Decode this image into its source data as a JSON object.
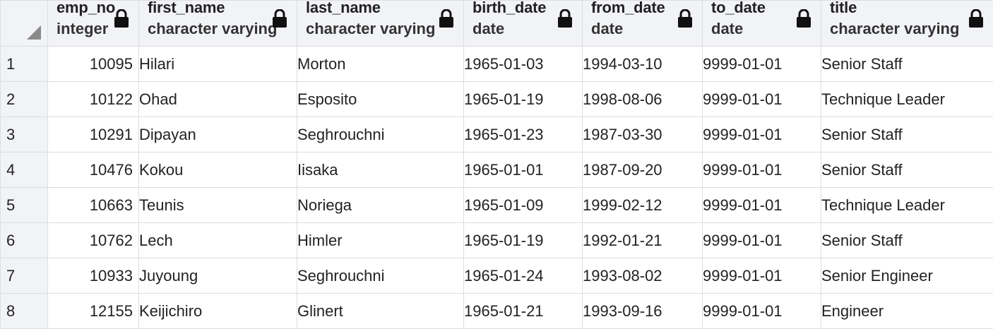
{
  "colors": {
    "header_bg": "#f2f3f6",
    "grid_border": "#dcdde2",
    "text": "#222222"
  },
  "columns": [
    {
      "name": "emp_no",
      "type": "integer",
      "locked": true,
      "icon": "lock-icon"
    },
    {
      "name": "first_name",
      "type": "character varying",
      "locked": true,
      "icon": "lock-icon"
    },
    {
      "name": "last_name",
      "type": "character varying",
      "locked": true,
      "icon": "lock-icon"
    },
    {
      "name": "birth_date",
      "type": "date",
      "locked": true,
      "icon": "lock-icon"
    },
    {
      "name": "from_date",
      "type": "date",
      "locked": true,
      "icon": "lock-icon"
    },
    {
      "name": "to_date",
      "type": "date",
      "locked": true,
      "icon": "lock-icon"
    },
    {
      "name": "title",
      "type": "character varying",
      "locked": true,
      "icon": "lock-icon"
    }
  ],
  "rows": [
    {
      "row": "1",
      "cells": [
        "10095",
        "Hilari",
        "Morton",
        "1965-01-03",
        "1994-03-10",
        "9999-01-01",
        "Senior Staff"
      ]
    },
    {
      "row": "2",
      "cells": [
        "10122",
        "Ohad",
        "Esposito",
        "1965-01-19",
        "1998-08-06",
        "9999-01-01",
        "Technique Leader"
      ]
    },
    {
      "row": "3",
      "cells": [
        "10291",
        "Dipayan",
        "Seghrouchni",
        "1965-01-23",
        "1987-03-30",
        "9999-01-01",
        "Senior Staff"
      ]
    },
    {
      "row": "4",
      "cells": [
        "10476",
        "Kokou",
        "Iisaka",
        "1965-01-01",
        "1987-09-20",
        "9999-01-01",
        "Senior Staff"
      ]
    },
    {
      "row": "5",
      "cells": [
        "10663",
        "Teunis",
        "Noriega",
        "1965-01-09",
        "1999-02-12",
        "9999-01-01",
        "Technique Leader"
      ]
    },
    {
      "row": "6",
      "cells": [
        "10762",
        "Lech",
        "Himler",
        "1965-01-19",
        "1992-01-21",
        "9999-01-01",
        "Senior Staff"
      ]
    },
    {
      "row": "7",
      "cells": [
        "10933",
        "Juyoung",
        "Seghrouchni",
        "1965-01-24",
        "1993-08-02",
        "9999-01-01",
        "Senior Engineer"
      ]
    },
    {
      "row": "8",
      "cells": [
        "12155",
        "Keijichiro",
        "Glinert",
        "1965-01-21",
        "1993-09-16",
        "9999-01-01",
        "Engineer"
      ]
    }
  ]
}
